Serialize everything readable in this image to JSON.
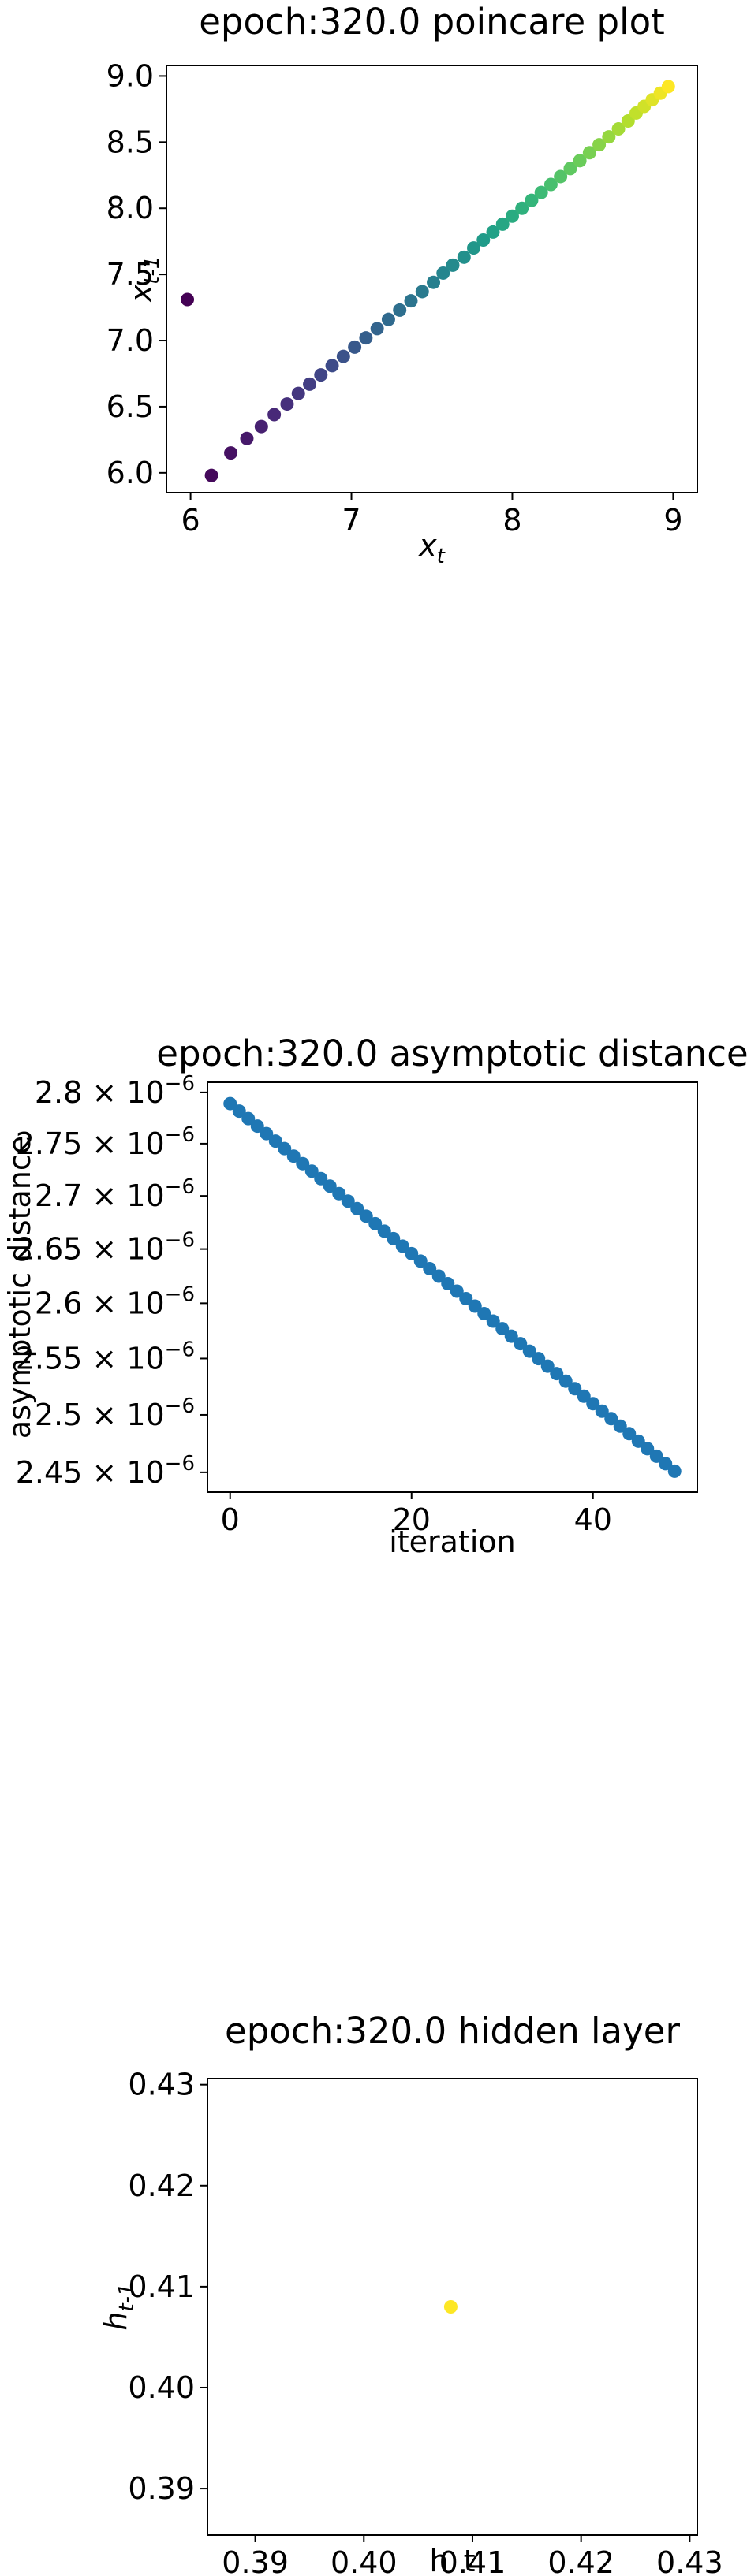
{
  "chart_data": [
    {
      "type": "scatter",
      "title": "epoch:320.0 poincare plot",
      "xlabel": "x",
      "xlabel_sub": "t",
      "ylabel": "x",
      "ylabel_sub": "t-1",
      "xlim": [
        5.85,
        9.15
      ],
      "ylim": [
        5.85,
        9.08
      ],
      "xticks": [
        6,
        7,
        8,
        9
      ],
      "yticks": [
        6.0,
        6.5,
        7.0,
        7.5,
        8.0,
        8.5,
        9.0
      ],
      "ytick_labels": [
        "6.0",
        "6.5",
        "7.0",
        "7.5",
        "8.0",
        "8.5",
        "9.0"
      ],
      "colormap": "viridis",
      "grid": false,
      "x": [
        5.98,
        6.13,
        6.25,
        6.35,
        6.44,
        6.52,
        6.6,
        6.67,
        6.74,
        6.81,
        6.88,
        6.95,
        7.02,
        7.09,
        7.16,
        7.23,
        7.3,
        7.37,
        7.44,
        7.51,
        7.57,
        7.63,
        7.7,
        7.76,
        7.82,
        7.88,
        7.94,
        8.0,
        8.06,
        8.12,
        8.18,
        8.24,
        8.3,
        8.36,
        8.42,
        8.48,
        8.54,
        8.6,
        8.66,
        8.72,
        8.77,
        8.82,
        8.87,
        8.92,
        8.97
      ],
      "y": [
        7.31,
        5.98,
        6.15,
        6.26,
        6.35,
        6.44,
        6.52,
        6.6,
        6.67,
        6.74,
        6.81,
        6.88,
        6.95,
        7.02,
        7.09,
        7.16,
        7.23,
        7.3,
        7.37,
        7.44,
        7.51,
        7.57,
        7.63,
        7.7,
        7.76,
        7.82,
        7.88,
        7.94,
        8.0,
        8.06,
        8.12,
        8.18,
        8.24,
        8.3,
        8.36,
        8.42,
        8.48,
        8.54,
        8.6,
        8.66,
        8.72,
        8.77,
        8.82,
        8.87,
        8.92
      ]
    },
    {
      "type": "scatter",
      "title": "epoch:320.0 asymptotic distance",
      "xlabel": "iteration",
      "ylabel": "asymptotic distance",
      "log_scale_y": true,
      "xlim": [
        -2.5,
        51.5
      ],
      "ylim": [
        2.433e-06,
        2.81e-06
      ],
      "xticks": [
        0,
        20,
        40
      ],
      "ytick_mantissas": [
        "2.8",
        "2.75",
        "2.7",
        "2.65",
        "2.6",
        "2.55",
        "2.5",
        "2.45"
      ],
      "ytick_values": [
        2.8e-06,
        2.75e-06,
        2.7e-06,
        2.65e-06,
        2.6e-06,
        2.55e-06,
        2.5e-06,
        2.45e-06
      ],
      "ytick_base": "10",
      "ytick_exponent": "−6",
      "color": "#1f77b4",
      "grid": false,
      "x_start": 0,
      "x_end": 49,
      "y_start": 2.789e-06,
      "y_end": 2.451e-06
    },
    {
      "type": "scatter",
      "title": "epoch:320.0 hidden layer",
      "xlabel": "h_t",
      "ylabel": "h",
      "ylabel_sub": "t-1",
      "xlim": [
        0.3856,
        0.4307
      ],
      "ylim": [
        0.3854,
        0.4306
      ],
      "xticks": [
        0.39,
        0.4,
        0.41,
        0.42,
        0.43
      ],
      "xtick_labels": [
        "0.39",
        "0.40",
        "0.41",
        "0.42",
        "0.43"
      ],
      "yticks": [
        0.39,
        0.4,
        0.41,
        0.42,
        0.43
      ],
      "ytick_labels": [
        "0.39",
        "0.40",
        "0.41",
        "0.42",
        "0.43"
      ],
      "color": "#fde725",
      "grid": false,
      "x": [
        0.408
      ],
      "y": [
        0.408
      ]
    }
  ]
}
